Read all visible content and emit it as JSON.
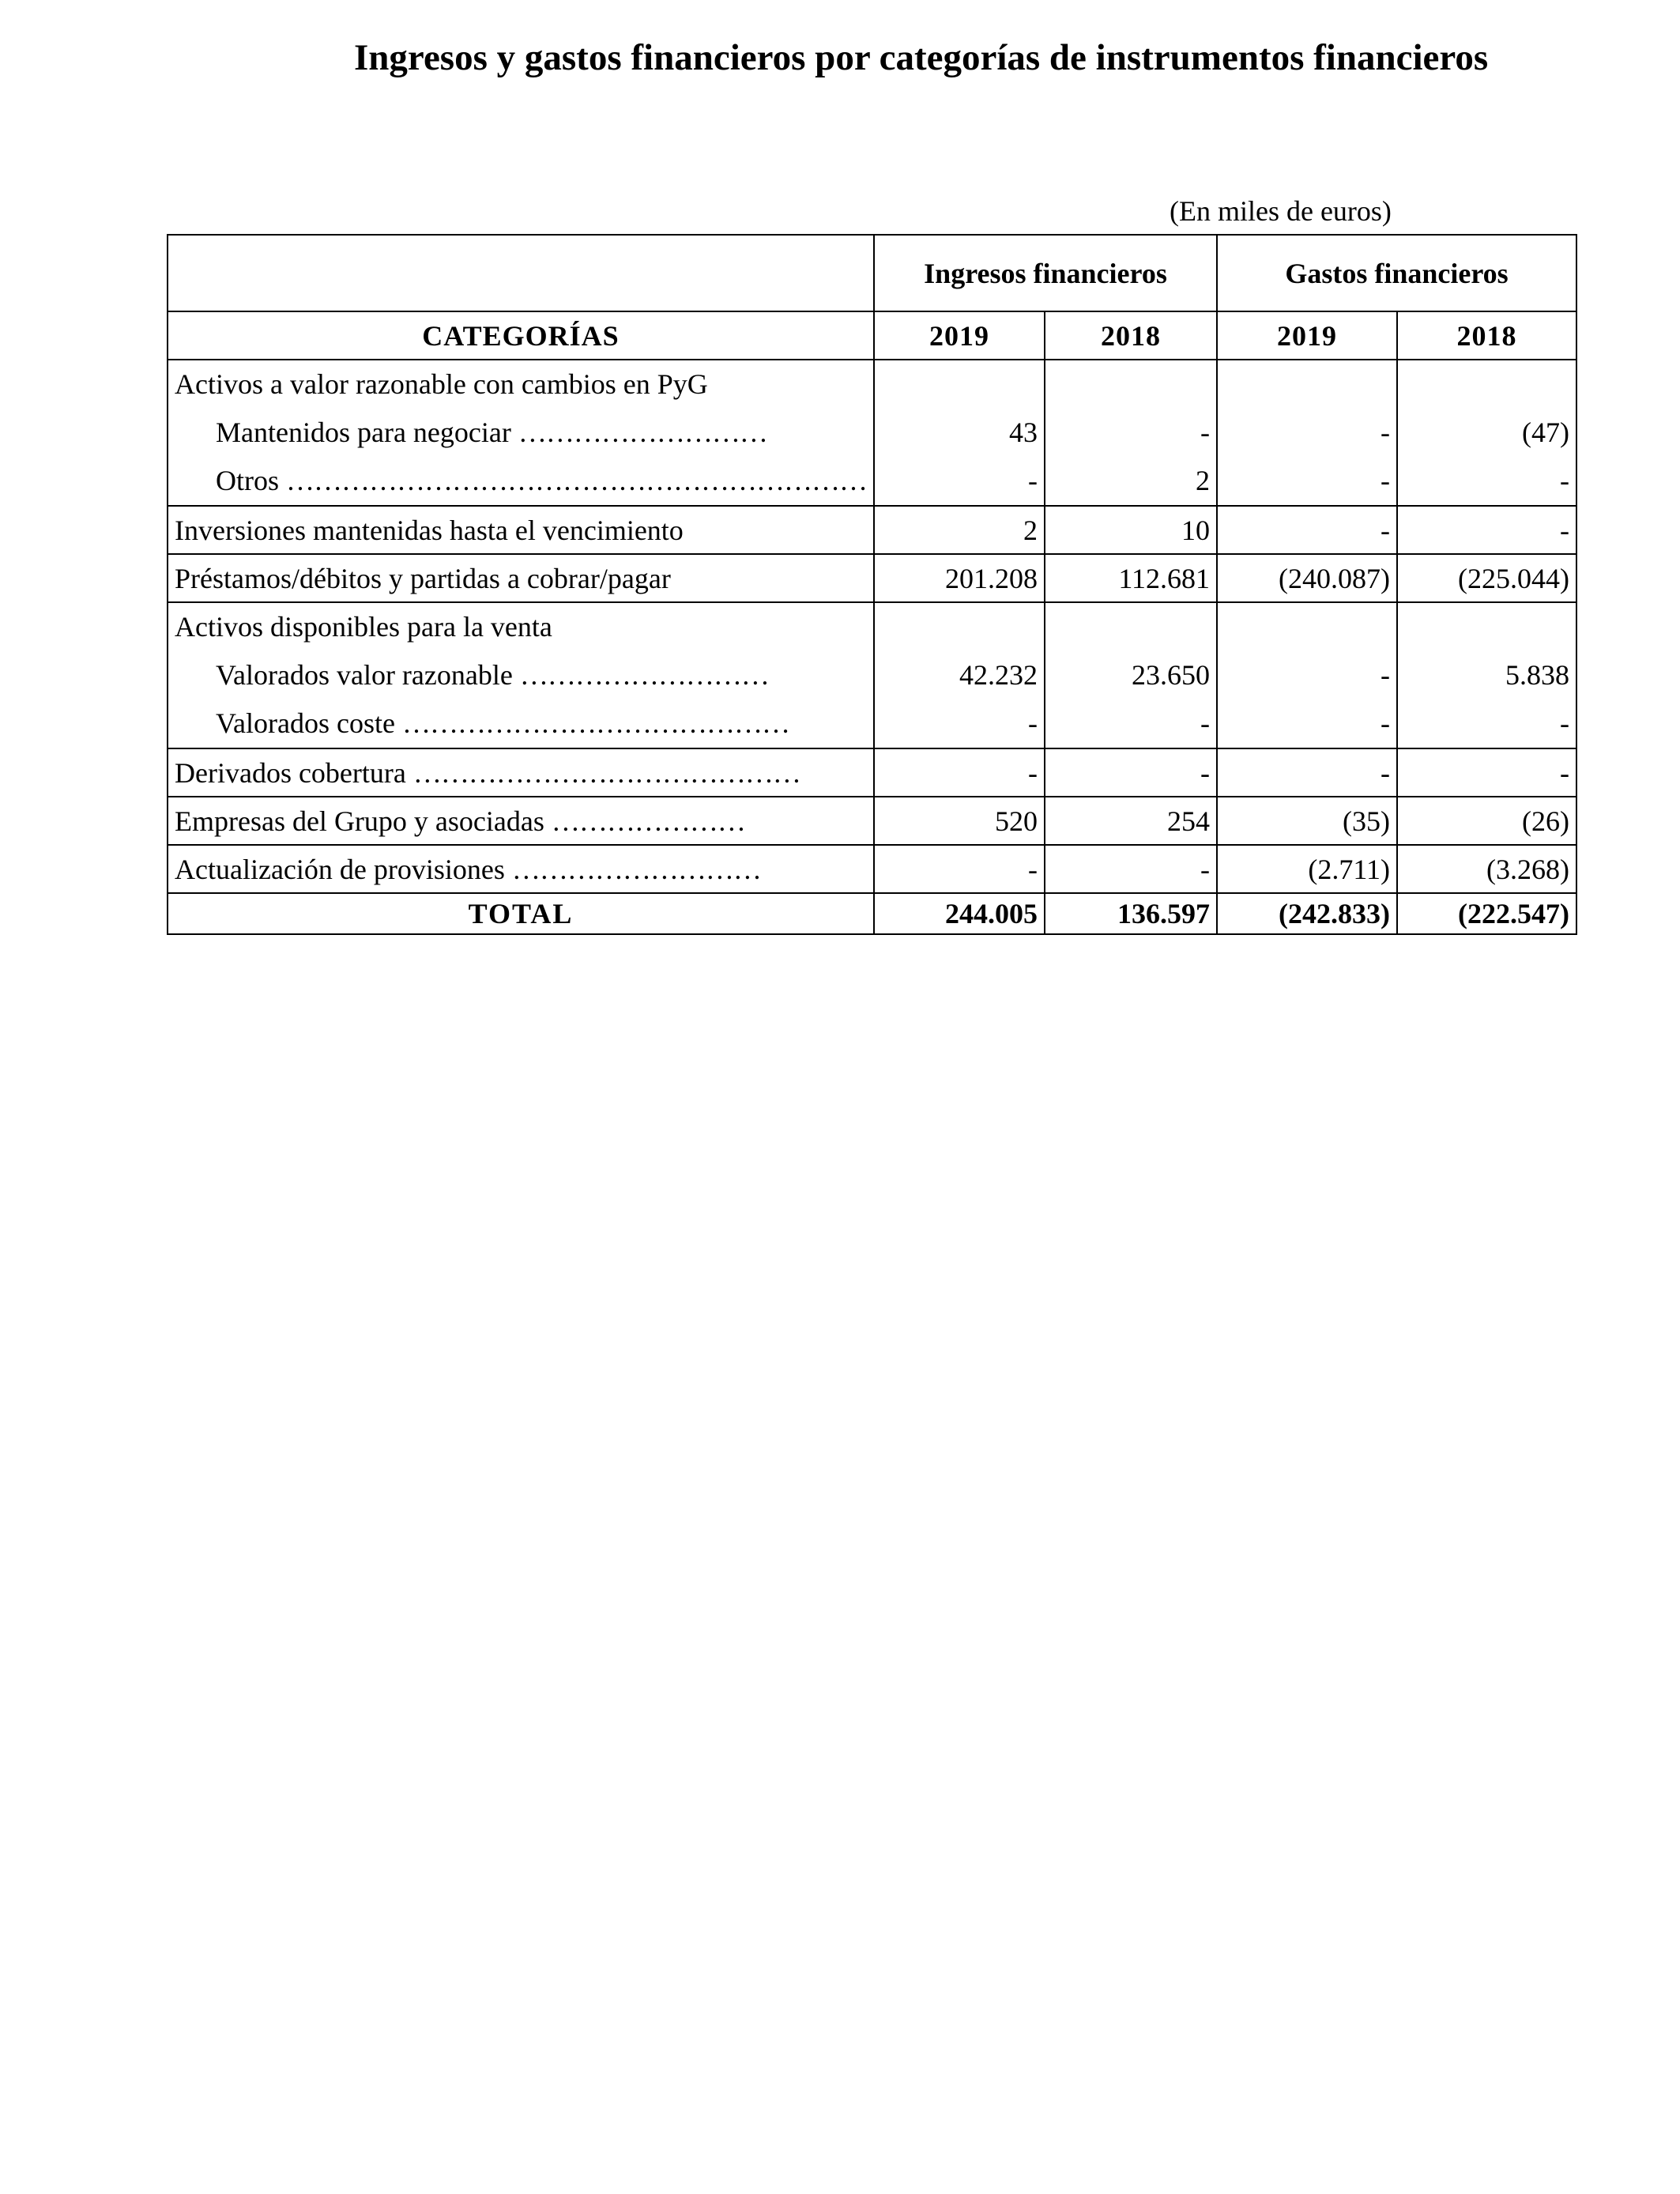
{
  "title": "Ingresos y gastos financieros por categorías de instrumentos financieros",
  "units": "(En miles de euros)",
  "table": {
    "group_headers": [
      "Ingresos financieros",
      "Gastos financieros"
    ],
    "category_header": "CATEGORÍAS",
    "years": [
      "2019",
      "2018",
      "2019",
      "2018"
    ],
    "groups": [
      {
        "label": "Activos a valor razonable con cambios en PyG",
        "rows": [
          {
            "label": "Mantenidos para negociar",
            "dots": "………………………",
            "values": [
              "43",
              "-",
              "-",
              "(47)"
            ]
          },
          {
            "label": "Otros",
            "dots": "………………………………………………………",
            "values": [
              "-",
              "2",
              "-",
              "-"
            ]
          }
        ]
      },
      {
        "label": "Inversiones mantenidas hasta el vencimiento",
        "values": [
          "2",
          "10",
          "-",
          "-"
        ]
      },
      {
        "label": "Préstamos/débitos y partidas a cobrar/pagar",
        "values": [
          "201.208",
          "112.681",
          "(240.087)",
          "(225.044)"
        ]
      },
      {
        "label": "Activos disponibles para la venta",
        "rows": [
          {
            "label": "Valorados valor razonable",
            "dots": "………………………",
            "values": [
              "42.232",
              "23.650",
              "-",
              "5.838"
            ]
          },
          {
            "label": "Valorados coste",
            "dots": "……………………………………",
            "values": [
              "-",
              "-",
              "-",
              "-"
            ]
          }
        ]
      },
      {
        "label": "Derivados cobertura",
        "dots": "……………………………………",
        "values": [
          "-",
          "-",
          "-",
          "-"
        ]
      },
      {
        "label": "Empresas del Grupo y asociadas",
        "dots": "…………………",
        "values": [
          "520",
          "254",
          "(35)",
          "(26)"
        ]
      },
      {
        "label": "Actualización de provisiones",
        "dots": "………………………",
        "values": [
          "-",
          "-",
          "(2.711)",
          "(3.268)"
        ]
      }
    ],
    "total": {
      "label": "TOTAL",
      "values": [
        "244.005",
        "136.597",
        "(242.833)",
        "(222.547)"
      ]
    }
  }
}
